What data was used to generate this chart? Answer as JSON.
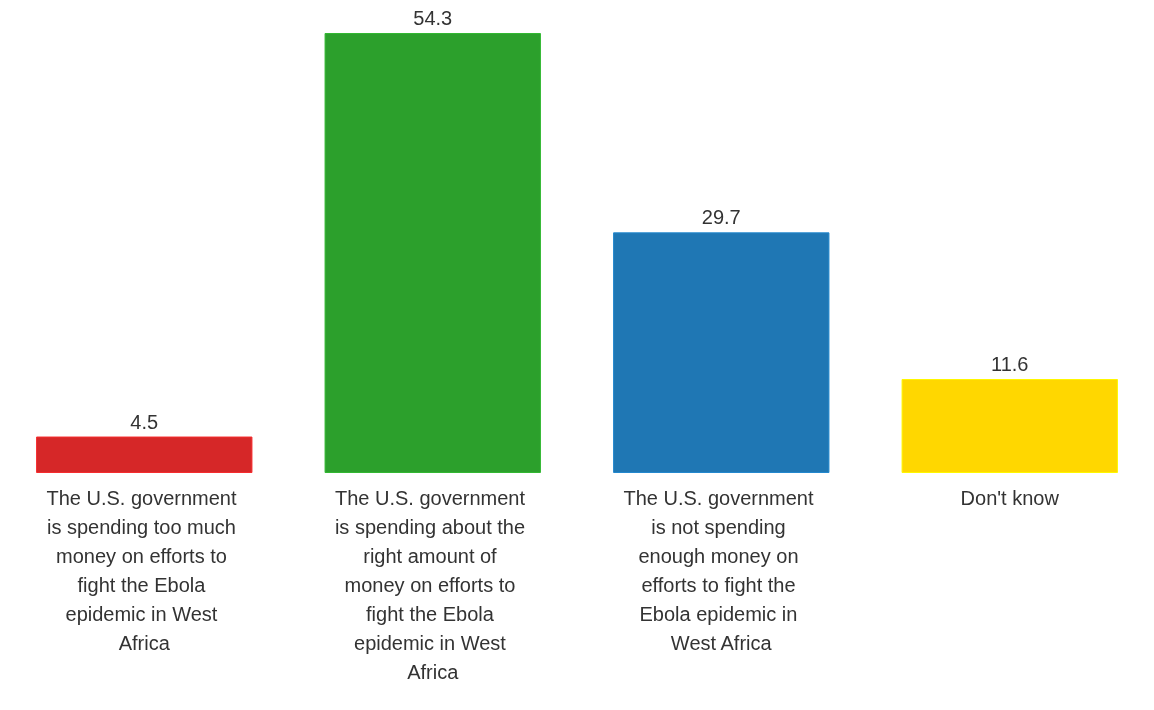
{
  "chart_data": {
    "type": "bar",
    "categories": [
      "The U.S. government is spending too much money on efforts to fight the Ebola epidemic in West Africa",
      "The U.S. government is spending about the right amount of money on efforts to fight the Ebola epidemic in West Africa",
      "The U.S. government is not spending enough money on efforts to fight the Ebola epidemic in West Africa",
      "Don't know"
    ],
    "values": [
      4.5,
      54.3,
      29.7,
      11.6
    ],
    "colors": [
      "#d62728",
      "#2ca02c",
      "#1f77b4",
      "#ffd700"
    ],
    "data_labels": true
  }
}
